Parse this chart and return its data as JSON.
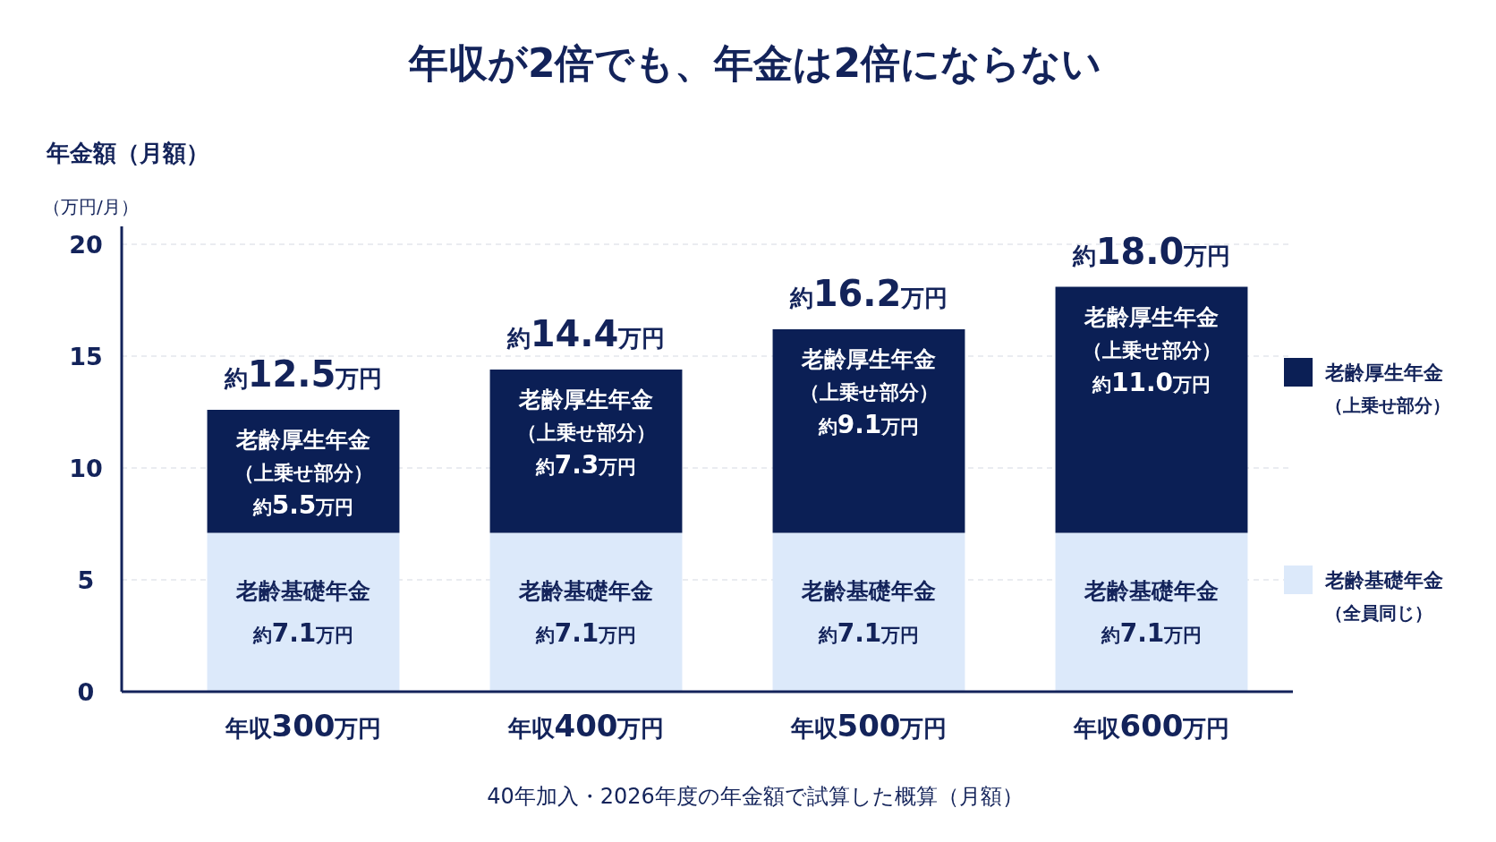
{
  "chart_data": {
    "type": "bar",
    "stacked": true,
    "title": "年収が2倍でも、年金は2倍にならない",
    "ylabel": "年金額（月額）",
    "annotations": [
      "（万円/月）",
      "40年加入・2026年度の年金額で試算した概算（月額）"
    ],
    "categories": [
      "年収300万円",
      "年収400万円",
      "年収500万円",
      "年収600万円"
    ],
    "series": [
      {
        "name": "老齢基礎年金（全員同じ）",
        "color": "#dce9fa",
        "values": [
          7.1,
          7.1,
          7.1,
          7.1
        ],
        "value_labels": [
          "老齢基礎年金約7.1万円",
          "老齢基礎年金約7.1万円",
          "老齢基礎年金約7.1万円",
          "老齢基礎年金約7.1万円"
        ]
      },
      {
        "name": "老齢厚生年金（上乗せ部分）",
        "color": "#0b1f55",
        "values": [
          5.5,
          7.3,
          9.1,
          11.0
        ],
        "value_labels": [
          "老齢厚生年金（上乗せ部分）約5.5万円",
          "老齢厚生年金（上乗せ部分）約7.3万円",
          "老齢厚生年金（上乗せ部分）約9.1万円",
          "老齢厚生年金（上乗せ部分）約11.0万円"
        ]
      }
    ],
    "totals": [
      "約12.5万円",
      "約14.4万円",
      "約16.2万円",
      "約18.0万円"
    ],
    "ylim": [
      0,
      20
    ],
    "yticks": [
      0,
      5,
      10,
      15,
      20
    ],
    "grid": "y",
    "legend": "right"
  }
}
